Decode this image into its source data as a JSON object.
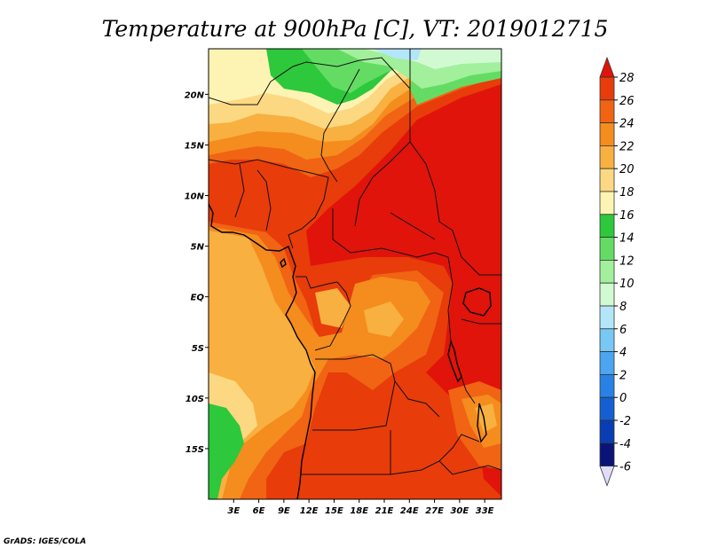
{
  "title": "Temperature at 900hPa [C], VT: 2019012715",
  "credit": "GrADS: IGES/COLA",
  "map": {
    "lon_range": [
      0,
      35
    ],
    "lat_range": [
      -20,
      24.5
    ],
    "lon_ticks": [
      {
        "value": 3,
        "label": "3E"
      },
      {
        "value": 6,
        "label": "6E"
      },
      {
        "value": 9,
        "label": "9E"
      },
      {
        "value": 12,
        "label": "12E"
      },
      {
        "value": 15,
        "label": "15E"
      },
      {
        "value": 18,
        "label": "18E"
      },
      {
        "value": 21,
        "label": "21E"
      },
      {
        "value": 24,
        "label": "24E"
      },
      {
        "value": 27,
        "label": "27E"
      },
      {
        "value": 30,
        "label": "30E"
      },
      {
        "value": 33,
        "label": "33E"
      }
    ],
    "lat_ticks": [
      {
        "value": 20,
        "label": "20N"
      },
      {
        "value": 15,
        "label": "15N"
      },
      {
        "value": 10,
        "label": "10N"
      },
      {
        "value": 5,
        "label": "5N"
      },
      {
        "value": 0,
        "label": "EQ"
      },
      {
        "value": -5,
        "label": "5S"
      },
      {
        "value": -10,
        "label": "10S"
      },
      {
        "value": -15,
        "label": "15S"
      }
    ]
  },
  "colorbar": {
    "levels": [
      28,
      26,
      24,
      22,
      20,
      18,
      16,
      14,
      12,
      10,
      8,
      6,
      4,
      2,
      0,
      -2,
      -4,
      -6
    ],
    "colors": [
      "#e0140a",
      "#e83c0a",
      "#f06414",
      "#f58c1e",
      "#f8b040",
      "#fdd882",
      "#fdf4b4",
      "#2ec83c",
      "#64dc64",
      "#a2f09c",
      "#d2fad2",
      "#b4e6fa",
      "#78c8f5",
      "#4ba5f0",
      "#2882e6",
      "#1460d2",
      "#0a3cb4",
      "#0a1478",
      "#e1dcfa"
    ]
  }
}
